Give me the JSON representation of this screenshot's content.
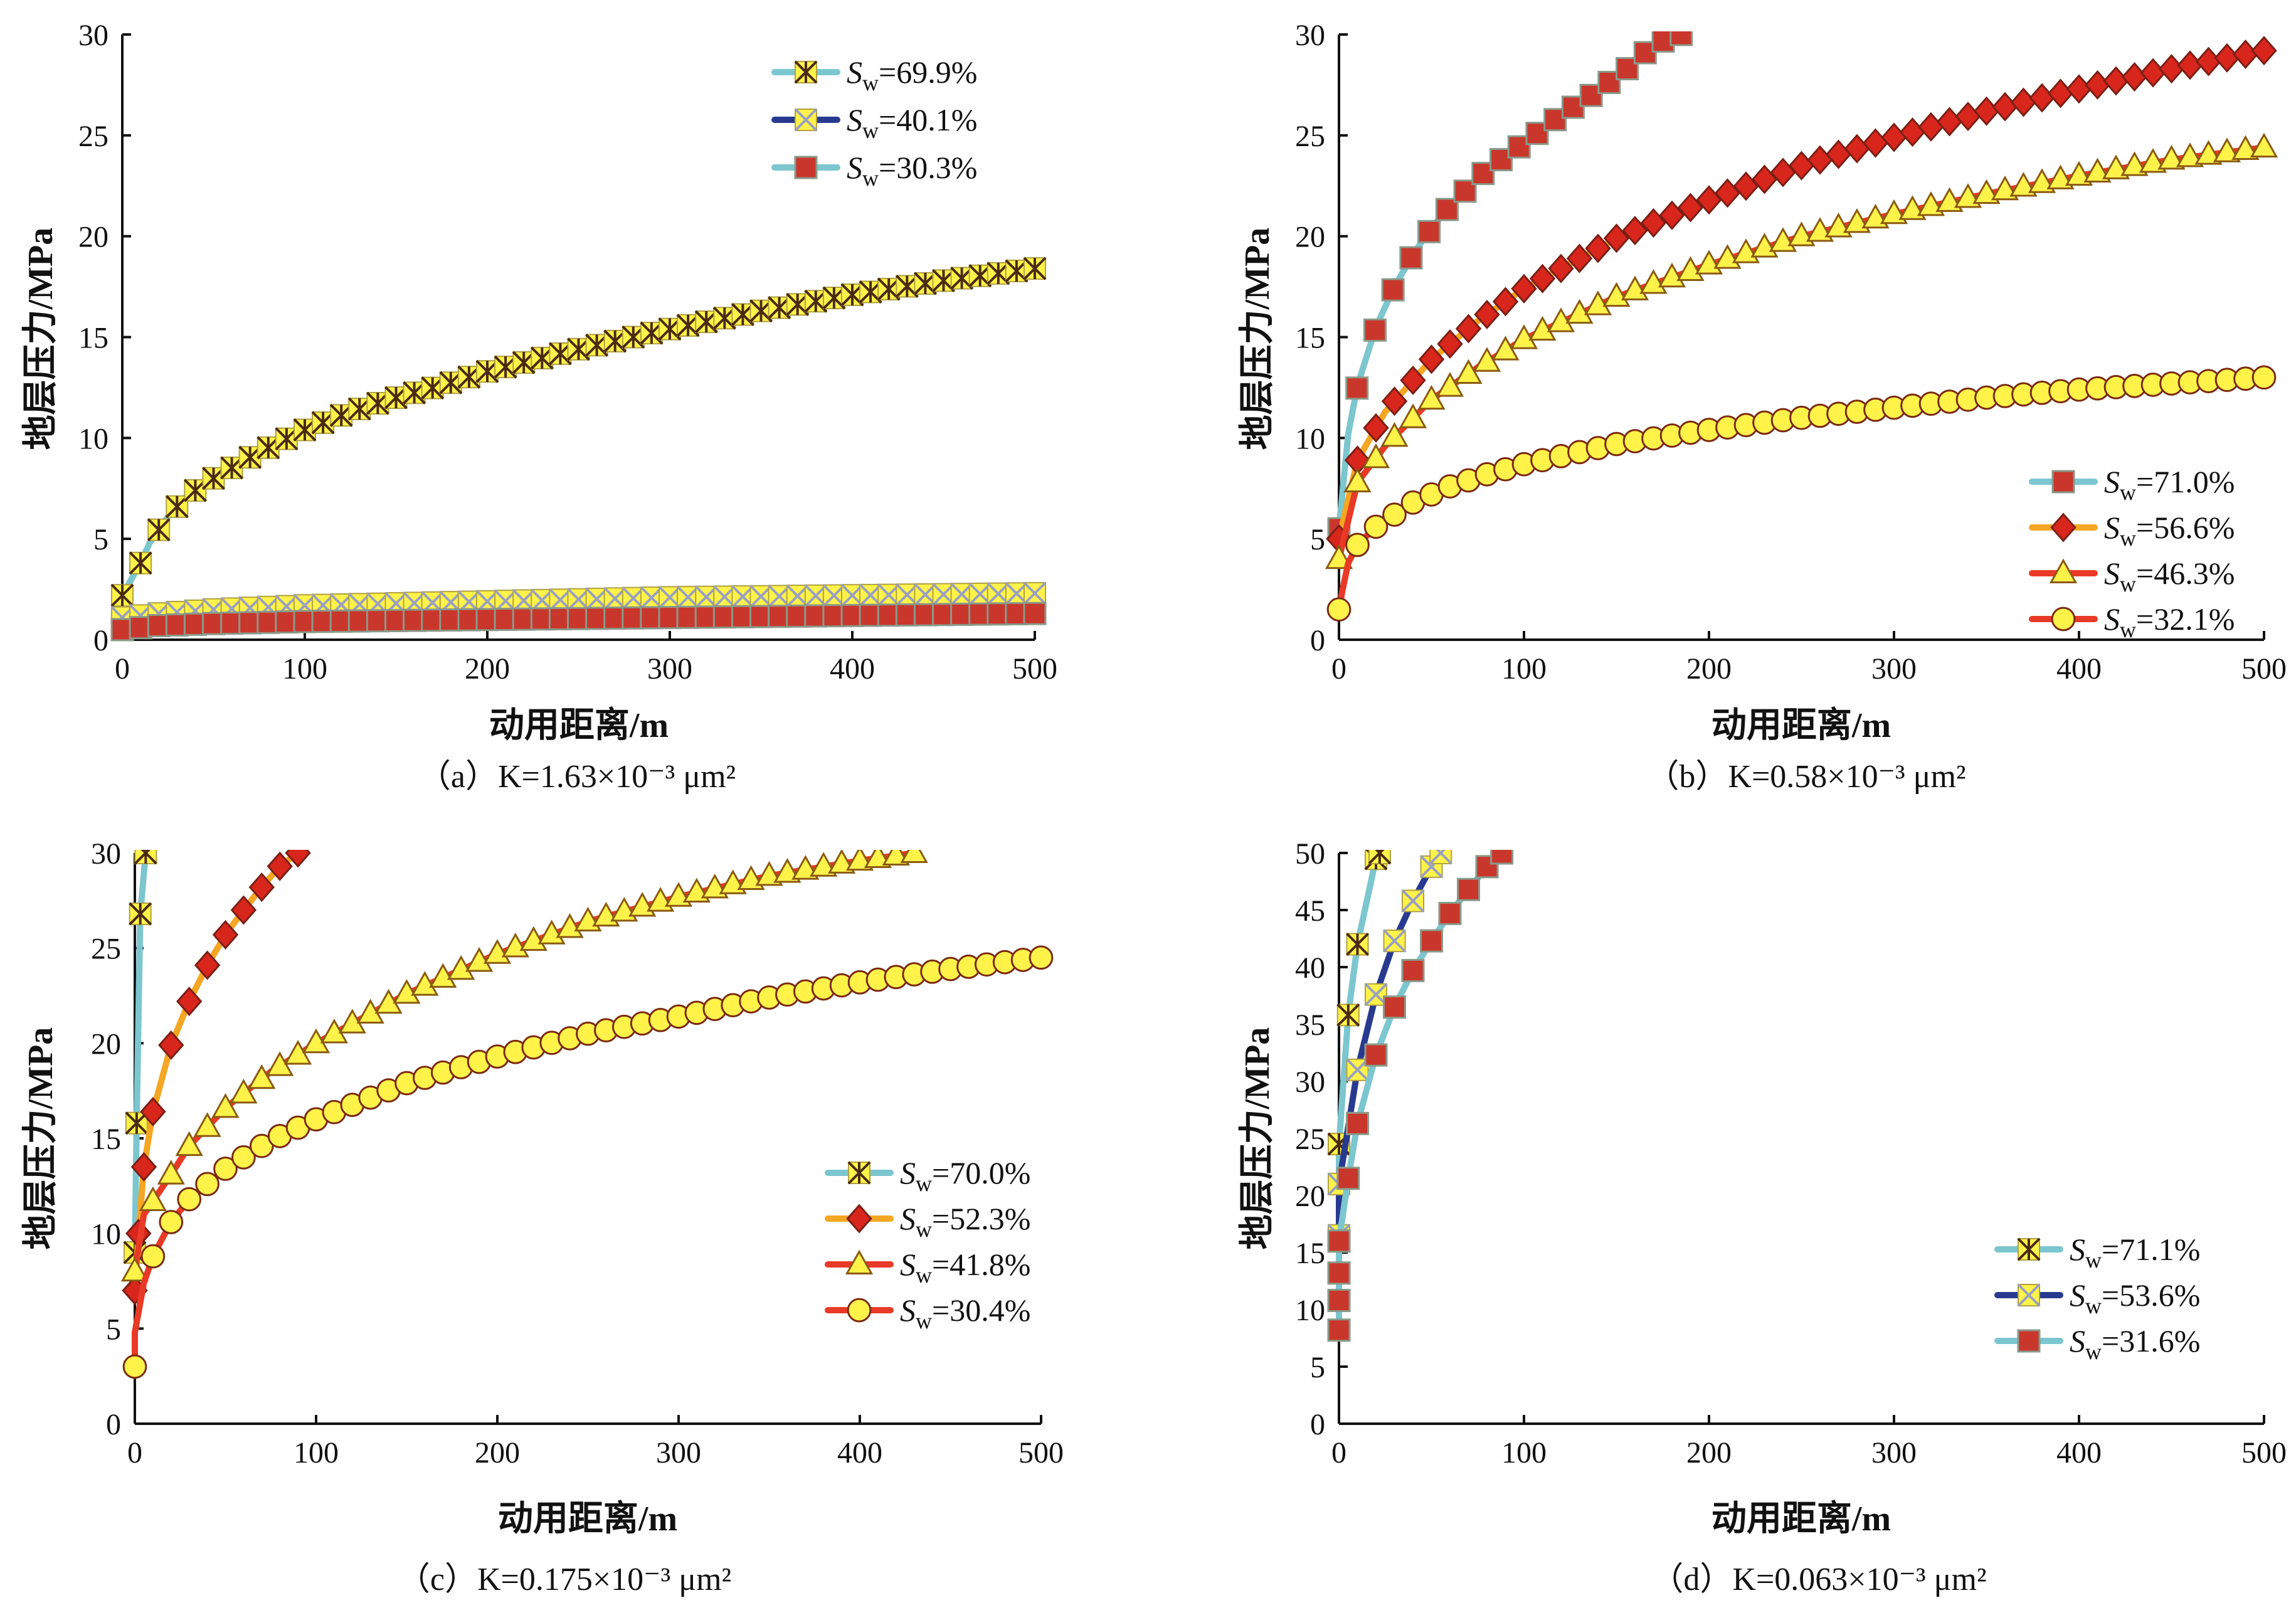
{
  "colors": {
    "axis": "#111111",
    "cyan": "#7cc6cf",
    "navy": "#283a8f",
    "orange": "#f5a623",
    "redline": "#e83a26",
    "marker_yellow": "#fff34a",
    "marker_red": "#c9372c",
    "marker_edge": "#7a1f15",
    "x_edge": "#4a2a10",
    "marker_edge_light": "#8a9a8a"
  },
  "icons": {
    "cross": "x-cross-marker",
    "star": "asterisk-marker",
    "square": "square-marker",
    "diamond": "diamond-marker",
    "triangle": "triangle-marker",
    "circle": "circle-marker"
  },
  "chart_data": [
    {
      "type": "line",
      "panel": "a",
      "caption": "（a）K=1.63×10⁻³ μm²",
      "xlabel": "动用距离/m",
      "ylabel": "地层压力/MPa",
      "xlim": [
        0,
        500
      ],
      "ylim": [
        0,
        30
      ],
      "xticks": [
        "0",
        "100",
        "200",
        "300",
        "400",
        "500"
      ],
      "yticks": [
        "0",
        "5",
        "10",
        "15",
        "20",
        "25",
        "30"
      ],
      "legend_position": "top-right",
      "series": [
        {
          "name": "Sw=69.9%",
          "sub": "w",
          "value": "=69.9%",
          "color": "cyan",
          "marker": "star",
          "p": [
            [
              0,
              2.2
            ],
            [
              10,
              3.8
            ],
            [
              15,
              4.8
            ],
            [
              25,
              6.1
            ],
            [
              35,
              7.1
            ],
            [
              50,
              8.0
            ],
            [
              75,
              9.3
            ],
            [
              100,
              10.4
            ],
            [
              125,
              11.3
            ],
            [
              150,
              12.0
            ],
            [
              175,
              12.6
            ],
            [
              200,
              13.3
            ],
            [
              250,
              14.4
            ],
            [
              300,
              15.4
            ],
            [
              350,
              16.3
            ],
            [
              400,
              17.1
            ],
            [
              450,
              17.8
            ],
            [
              500,
              18.4
            ]
          ]
        },
        {
          "name": "Sw=40.1%",
          "sub": "w",
          "value": "=40.1%",
          "color": "navy",
          "marker": "cross",
          "p": [
            [
              0,
              1.1
            ],
            [
              20,
              1.3
            ],
            [
              50,
              1.5
            ],
            [
              100,
              1.7
            ],
            [
              150,
              1.8
            ],
            [
              200,
              1.9
            ],
            [
              250,
              2.0
            ],
            [
              300,
              2.1
            ],
            [
              400,
              2.2
            ],
            [
              500,
              2.3
            ]
          ]
        },
        {
          "name": "Sw=30.3%",
          "sub": "w",
          "value": "=30.3%",
          "color": "cyan",
          "marker": "square",
          "p": [
            [
              0,
              0.5
            ],
            [
              20,
              0.7
            ],
            [
              50,
              0.8
            ],
            [
              100,
              0.9
            ],
            [
              200,
              1.0
            ],
            [
              300,
              1.1
            ],
            [
              400,
              1.2
            ],
            [
              500,
              1.3
            ]
          ]
        }
      ]
    },
    {
      "type": "line",
      "panel": "b",
      "caption": "（b）K=0.58×10⁻³ μm²",
      "xlabel": "动用距离/m",
      "ylabel": "地层压力/MPa",
      "xlim": [
        0,
        500
      ],
      "ylim": [
        0,
        30
      ],
      "xticks": [
        "0",
        "100",
        "200",
        "300",
        "400",
        "500"
      ],
      "yticks": [
        "0",
        "5",
        "10",
        "15",
        "20",
        "25",
        "30"
      ],
      "legend_position": "lower-right",
      "series": [
        {
          "name": "Sw=71.0%",
          "sub": "w",
          "value": "=71.0%",
          "color": "cyan",
          "marker": "square",
          "p": [
            [
              0,
              5.5
            ],
            [
              5,
              10.2
            ],
            [
              10,
              12.6
            ],
            [
              20,
              15.5
            ],
            [
              30,
              17.5
            ],
            [
              40,
              19.1
            ],
            [
              50,
              20.4
            ],
            [
              60,
              21.5
            ],
            [
              80,
              23.3
            ],
            [
              100,
              24.6
            ],
            [
              120,
              26.0
            ],
            [
              140,
              27.2
            ],
            [
              160,
              28.6
            ],
            [
              170,
              29.5
            ],
            [
              185,
              30.0
            ]
          ]
        },
        {
          "name": "Sw=56.6%",
          "sub": "w",
          "value": "=56.6%",
          "color": "orange",
          "marker": "diamond",
          "p": [
            [
              0,
              5.0
            ],
            [
              10,
              8.9
            ],
            [
              25,
              11.3
            ],
            [
              50,
              13.9
            ],
            [
              75,
              15.8
            ],
            [
              100,
              17.4
            ],
            [
              150,
              19.9
            ],
            [
              200,
              21.8
            ],
            [
              250,
              23.5
            ],
            [
              300,
              24.9
            ],
            [
              350,
              26.2
            ],
            [
              400,
              27.3
            ],
            [
              450,
              28.3
            ],
            [
              500,
              29.2
            ]
          ]
        },
        {
          "name": "Sw=46.3%",
          "sub": "w",
          "value": "=46.3%",
          "color": "redline",
          "marker": "triangle",
          "p": [
            [
              0,
              4.0
            ],
            [
              10,
              7.8
            ],
            [
              25,
              9.6
            ],
            [
              50,
              11.9
            ],
            [
              75,
              13.5
            ],
            [
              100,
              14.9
            ],
            [
              150,
              17.0
            ],
            [
              200,
              18.6
            ],
            [
              250,
              20.0
            ],
            [
              300,
              21.1
            ],
            [
              350,
              22.1
            ],
            [
              400,
              23.0
            ],
            [
              450,
              23.8
            ],
            [
              500,
              24.4
            ]
          ]
        },
        {
          "name": "Sw=32.1%",
          "sub": "w",
          "value": "=32.1%",
          "color": "redline",
          "marker": "circle",
          "p": [
            [
              0,
              1.5
            ],
            [
              2,
              2.5
            ],
            [
              5,
              3.8
            ],
            [
              10,
              4.7
            ],
            [
              20,
              5.6
            ],
            [
              40,
              6.8
            ],
            [
              60,
              7.6
            ],
            [
              80,
              8.2
            ],
            [
              100,
              8.7
            ],
            [
              150,
              9.7
            ],
            [
              200,
              10.4
            ],
            [
              250,
              11.0
            ],
            [
              300,
              11.5
            ],
            [
              350,
              12.0
            ],
            [
              400,
              12.4
            ],
            [
              450,
              12.7
            ],
            [
              500,
              13.0
            ]
          ]
        }
      ]
    },
    {
      "type": "line",
      "panel": "c",
      "caption": "（c）K=0.175×10⁻³ μm²",
      "xlabel": "动用距离/m",
      "ylabel": "地层压力/MPa",
      "xlim": [
        0,
        500
      ],
      "ylim": [
        0,
        30
      ],
      "xticks": [
        "0",
        "100",
        "200",
        "300",
        "400",
        "500"
      ],
      "yticks": [
        "0",
        "5",
        "10",
        "15",
        "20",
        "25",
        "30"
      ],
      "legend_position": "right",
      "series": [
        {
          "name": "Sw=70.0%",
          "sub": "w",
          "value": "=70.0%",
          "color": "cyan",
          "marker": "star",
          "p": [
            [
              0,
              9.0
            ],
            [
              1,
              15.8
            ],
            [
              3,
              26.8
            ],
            [
              6,
              30.0
            ]
          ]
        },
        {
          "name": "Sw=52.3%",
          "sub": "w",
          "value": "=52.3%",
          "color": "orange",
          "marker": "diamond",
          "p": [
            [
              0,
              7.0
            ],
            [
              2,
              10.0
            ],
            [
              5,
              13.5
            ],
            [
              10,
              16.4
            ],
            [
              20,
              19.9
            ],
            [
              30,
              22.2
            ],
            [
              40,
              24.1
            ],
            [
              50,
              25.7
            ],
            [
              60,
              27.0
            ],
            [
              70,
              28.2
            ],
            [
              80,
              29.3
            ],
            [
              90,
              30.0
            ]
          ]
        },
        {
          "name": "Sw=41.8%",
          "sub": "w",
          "value": "=41.8%",
          "color": "redline",
          "marker": "triangle",
          "p": [
            [
              0,
              8.0
            ],
            [
              5,
              11.0
            ],
            [
              20,
              13.1
            ],
            [
              30,
              14.6
            ],
            [
              50,
              16.6
            ],
            [
              75,
              18.5
            ],
            [
              100,
              20.0
            ],
            [
              150,
              22.6
            ],
            [
              200,
              24.7
            ],
            [
              250,
              26.4
            ],
            [
              300,
              27.7
            ],
            [
              350,
              28.8
            ],
            [
              400,
              29.6
            ],
            [
              430,
              30.0
            ]
          ]
        },
        {
          "name": "Sw=30.4%",
          "sub": "w",
          "value": "=30.4%",
          "color": "redline",
          "marker": "circle",
          "p": [
            [
              0,
              3.0
            ],
            [
              0,
              4.0
            ],
            [
              0,
              4.8
            ],
            [
              5,
              7.4
            ],
            [
              10,
              8.8
            ],
            [
              20,
              10.6
            ],
            [
              30,
              11.8
            ],
            [
              50,
              13.4
            ],
            [
              75,
              14.9
            ],
            [
              100,
              16.0
            ],
            [
              150,
              17.9
            ],
            [
              200,
              19.3
            ],
            [
              250,
              20.5
            ],
            [
              300,
              21.4
            ],
            [
              350,
              22.4
            ],
            [
              400,
              23.2
            ],
            [
              450,
              23.9
            ],
            [
              500,
              24.5
            ]
          ]
        }
      ]
    },
    {
      "type": "line",
      "panel": "d",
      "caption": "（d）K=0.063×10⁻³ μm²",
      "xlabel": "动用距离/m",
      "ylabel": "地层压力/MPa",
      "xlim": [
        0,
        500
      ],
      "ylim": [
        0,
        50
      ],
      "xticks": [
        "0",
        "100",
        "200",
        "300",
        "400",
        "500"
      ],
      "yticks": [
        "0",
        "5",
        "10",
        "15",
        "20",
        "25",
        "30",
        "35",
        "40",
        "45",
        "50"
      ],
      "legend_position": "lower-right",
      "series": [
        {
          "name": "Sw=71.1%",
          "sub": "w",
          "value": "=71.1%",
          "color": "cyan",
          "marker": "star",
          "p": [
            [
              0,
              16.0
            ],
            [
              0,
              24.5
            ],
            [
              5,
              35.8
            ],
            [
              10,
              42.0
            ],
            [
              20,
              49.5
            ],
            [
              22,
              50.0
            ]
          ]
        },
        {
          "name": "Sw=53.6%",
          "sub": "w",
          "value": "=53.6%",
          "color": "navy",
          "marker": "cross",
          "p": [
            [
              0,
              16.5
            ],
            [
              0,
              21.0
            ],
            [
              10,
              31.0
            ],
            [
              20,
              37.6
            ],
            [
              30,
              42.3
            ],
            [
              40,
              45.8
            ],
            [
              50,
              48.8
            ],
            [
              55,
              50.0
            ]
          ]
        },
        {
          "name": "Sw=31.6%",
          "sub": "w",
          "value": "=31.6%",
          "color": "cyan",
          "marker": "square",
          "p": [
            [
              0,
              8.2
            ],
            [
              0,
              10.8
            ],
            [
              0,
              13.2
            ],
            [
              0,
              16.0
            ],
            [
              5,
              21.5
            ],
            [
              10,
              26.3
            ],
            [
              20,
              32.3
            ],
            [
              30,
              36.5
            ],
            [
              40,
              39.7
            ],
            [
              50,
              42.3
            ],
            [
              60,
              44.7
            ],
            [
              70,
              46.8
            ],
            [
              80,
              48.8
            ],
            [
              88,
              50.0
            ]
          ]
        }
      ]
    }
  ]
}
